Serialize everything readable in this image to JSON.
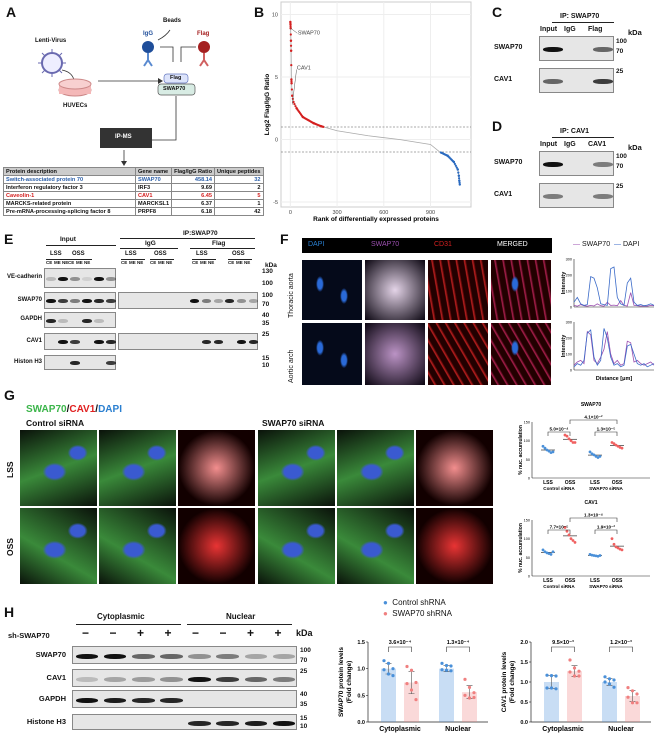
{
  "panels": {
    "A": "A",
    "B": "B",
    "C": "C",
    "D": "D",
    "E": "E",
    "F": "F",
    "G": "G",
    "H": "H"
  },
  "A": {
    "lenti": "Lenti-Virus",
    "huvec": "HUVECs",
    "beads": "Beads",
    "igg": "IgG",
    "flag": "Flag",
    "tag": "Flag",
    "bait": "SWAP70",
    "ipms": "IP-MS",
    "table": {
      "headers": [
        "Protein description",
        "Gene name",
        "Flag/IgG Ratio",
        "Unique peptides"
      ],
      "rows": [
        [
          "Switch-associated protein 70",
          "SWAP70",
          "458.14",
          "32"
        ],
        [
          "Interferon regulatory factor 3",
          "IRF3",
          "9.69",
          "2"
        ],
        [
          "Caveolin-1",
          "CAV1",
          "6.45",
          "5"
        ],
        [
          "MARCKS-related protein",
          "MARCKSL1",
          "6.37",
          "1"
        ],
        [
          "Pre-mRNA-processing-splicing factor 8",
          "PRPF8",
          "6.18",
          "42"
        ]
      ],
      "row_colors": [
        "#2a5ea8",
        "#111",
        "#d42020",
        "#111",
        "#111"
      ]
    }
  },
  "chart_data": [
    {
      "id": "B",
      "type": "scatter",
      "xlabel": "Rank of differentially expressed proteins",
      "ylabel": "Log2 Flag/IgG Ratio",
      "xlim": [
        -60,
        1160
      ],
      "ylim": [
        -5.4,
        11
      ],
      "xticks": [
        "0",
        "300",
        "600",
        "900"
      ],
      "yticks": [
        "10",
        "5",
        "0",
        "-5"
      ],
      "grid": true,
      "thresholds": [
        1,
        -1
      ],
      "annotations": [
        "SWAP70",
        "CAV1"
      ],
      "points": [
        [
          0,
          9.4
        ],
        [
          1,
          9.2
        ],
        [
          2,
          8.9
        ],
        [
          4,
          7.9
        ],
        [
          5,
          7.1
        ],
        [
          7,
          4.8
        ],
        [
          8,
          4.5
        ],
        [
          12,
          3.5
        ],
        [
          20,
          3.0
        ],
        [
          40,
          2.5
        ],
        [
          80,
          1.8
        ],
        [
          150,
          1.3
        ],
        [
          200,
          1.05
        ],
        [
          300,
          0.7
        ],
        [
          500,
          0.3
        ],
        [
          700,
          0.0
        ],
        [
          900,
          -0.4
        ],
        [
          960,
          -1.0
        ],
        [
          1010,
          -1.3
        ],
        [
          1050,
          -1.8
        ],
        [
          1075,
          -2.4
        ],
        [
          1082,
          -2.9
        ],
        [
          1085,
          -3.3
        ],
        [
          1088,
          -3.6
        ]
      ],
      "colors": {
        "up": "#d42020",
        "down": "#2a6ac0",
        "ns": "#aaaaaa"
      }
    },
    {
      "id": "F-thoracic",
      "type": "line",
      "ylabel": "Intensity",
      "ylim": [
        0,
        300
      ],
      "yticks": [
        "0",
        "100",
        "200",
        "300"
      ],
      "series": [
        {
          "name": "SWAP70",
          "color": "#9b4fb0",
          "values": [
            10,
            5,
            15,
            8,
            5,
            10,
            6,
            20,
            8,
            5,
            30,
            10,
            12,
            8,
            40,
            10,
            6,
            90,
            10,
            8,
            5,
            6,
            5,
            10,
            8
          ]
        },
        {
          "name": "DAPI",
          "color": "#3a6ac8",
          "values": [
            30,
            60,
            20,
            10,
            15,
            190,
            180,
            120,
            20,
            15,
            10,
            240,
            250,
            60,
            20,
            10,
            150,
            180,
            30,
            10,
            15,
            8,
            12,
            20,
            10
          ]
        }
      ]
    },
    {
      "id": "F-aortic",
      "type": "line",
      "xlabel": "Distance [μm]",
      "ylabel": "Intensity",
      "ylim": [
        0,
        300
      ],
      "yticks": [
        "0",
        "100",
        "200",
        "300"
      ],
      "series": [
        {
          "name": "SWAP70",
          "color": "#9b4fb0",
          "values": [
            30,
            50,
            60,
            40,
            240,
            220,
            60,
            40,
            80,
            130,
            240,
            100,
            40,
            60,
            30,
            40,
            180,
            170,
            50,
            60,
            40,
            30,
            40,
            50,
            30
          ]
        },
        {
          "name": "DAPI",
          "color": "#3a6ac8",
          "values": [
            20,
            40,
            30,
            60,
            230,
            250,
            80,
            30,
            60,
            260,
            200,
            80,
            30,
            40,
            20,
            30,
            150,
            160,
            100,
            40,
            30,
            40,
            20,
            30,
            40
          ]
        }
      ]
    },
    {
      "id": "G-SWAP70",
      "type": "scatter",
      "title": "SWAP70",
      "ylabel": "% nuc. accumulation",
      "ylim": [
        0,
        150
      ],
      "yticks": [
        "0",
        "50",
        "100",
        "150"
      ],
      "categories": [
        "LSS",
        "OSS",
        "LSS",
        "OSS"
      ],
      "groups": [
        "Control siRNA",
        "SWAP70 siRNA"
      ],
      "values": [
        [
          85,
          80,
          75,
          72,
          68,
          70
        ],
        [
          115,
          112,
          105,
          100,
          95,
          95
        ],
        [
          70,
          65,
          62,
          58,
          55,
          58
        ],
        [
          95,
          92,
          88,
          85,
          82,
          80
        ]
      ],
      "pvalues": [
        "5.0×10⁻⁴",
        "1.3×10⁻⁵",
        "4.1×10⁻²"
      ]
    },
    {
      "id": "G-CAV1",
      "type": "scatter",
      "title": "CAV1",
      "ylabel": "% nuc. accumulation",
      "ylim": [
        0,
        150
      ],
      "yticks": [
        "0",
        "50",
        "100",
        "150"
      ],
      "categories": [
        "LSS",
        "OSS",
        "LSS",
        "OSS"
      ],
      "groups": [
        "Control siRNA",
        "SWAP70 siRNA"
      ],
      "values": [
        [
          70,
          65,
          62,
          60,
          58,
          65
        ],
        [
          130,
          120,
          110,
          100,
          95,
          90
        ],
        [
          58,
          56,
          55,
          54,
          53,
          55
        ],
        [
          100,
          85,
          78,
          75,
          72,
          70
        ]
      ],
      "pvalues": [
        "7.7×10⁻⁵",
        "1.9×10⁻²",
        "1.3×10⁻⁴"
      ]
    },
    {
      "id": "H-SWAP70",
      "type": "bar",
      "ylabel": "SWAP70 protein levels\n(Fold change)",
      "ylim": [
        0,
        1.5
      ],
      "yticks": [
        "0.0",
        "0.5",
        "1.0",
        "1.5"
      ],
      "categories": [
        "Cytoplasmic",
        "Nuclear"
      ],
      "series": [
        {
          "name": "Control shRNA",
          "color": "#4a90d9",
          "values": [
            1.0,
            1.0
          ],
          "points": [
            [
              1.15,
              1.1,
              1.0,
              0.98,
              0.9,
              0.87
            ],
            [
              1.1,
              1.06,
              1.05,
              0.98,
              0.97,
              0.96
            ]
          ]
        },
        {
          "name": "SWAP70 shRNA",
          "color": "#f08080",
          "values": [
            0.74,
            0.56
          ],
          "points": [
            [
              1.04,
              0.97,
              0.74,
              0.72,
              0.6,
              0.42
            ],
            [
              0.8,
              0.65,
              0.55,
              0.5,
              0.45,
              0.46
            ]
          ]
        }
      ],
      "pvalues": [
        "3.6×10⁻⁴",
        "1.3×10⁻⁴"
      ]
    },
    {
      "id": "H-CAV1",
      "type": "bar",
      "ylabel": "CAV1 protein levels\n(Fold change)",
      "ylim": [
        0,
        2.0
      ],
      "yticks": [
        "0.0",
        "0.5",
        "1.0",
        "1.5",
        "2.0"
      ],
      "categories": [
        "Cytoplasmic",
        "Nuclear"
      ],
      "series": [
        {
          "name": "Control shRNA",
          "color": "#4a90d9",
          "values": [
            1.0,
            1.0
          ],
          "points": [
            [
              1.17,
              1.16,
              1.15,
              0.85,
              0.85,
              0.83
            ],
            [
              1.13,
              1.08,
              1.05,
              1.0,
              0.95,
              0.87
            ]
          ]
        },
        {
          "name": "SWAP70 shRNA",
          "color": "#f08080",
          "values": [
            1.27,
            0.65
          ],
          "points": [
            [
              1.55,
              1.35,
              1.27,
              1.25,
              1.15,
              1.15
            ],
            [
              0.86,
              0.78,
              0.7,
              0.62,
              0.48,
              0.48
            ]
          ]
        }
      ],
      "pvalues": [
        "9.5×10⁻³",
        "1.2×10⁻³"
      ]
    }
  ],
  "C": {
    "ip": "IP: SWAP70",
    "lanes": [
      "Input",
      "IgG",
      "Flag"
    ],
    "kda": "kDa",
    "rows": [
      {
        "label": "SWAP70",
        "bands": [
          1,
          0,
          0.6
        ],
        "markers": [
          "100",
          "70"
        ]
      },
      {
        "label": "CAV1",
        "bands": [
          0.6,
          0,
          0.8
        ],
        "markers": [
          "25"
        ]
      }
    ]
  },
  "D": {
    "ip": "IP: CAV1",
    "lanes": [
      "Input",
      "IgG",
      "CAV1"
    ],
    "kda": "kDa",
    "rows": [
      {
        "label": "SWAP70",
        "bands": [
          1,
          0,
          0.5
        ],
        "markers": [
          "100",
          "70"
        ]
      },
      {
        "label": "CAV1",
        "bands": [
          0.5,
          0,
          0.5
        ],
        "markers": [
          "25"
        ]
      }
    ]
  },
  "E": {
    "input": "Input",
    "ip": "IP:SWAP70",
    "igg": "IgG",
    "flag": "Flag",
    "lss": "LSS",
    "oss": "OSS",
    "fractions": [
      "CE",
      "ME",
      "NE"
    ],
    "kda": "kDa",
    "rows": [
      {
        "label": "VE-cadherin",
        "input": [
          0.2,
          1,
          0.4,
          0.1,
          1,
          0.4
        ],
        "ip": null,
        "markers": [
          "130",
          "100"
        ]
      },
      {
        "label": "SWAP70",
        "input": [
          1,
          0.8,
          0.5,
          1,
          0.9,
          0.8
        ],
        "ip": [
          0,
          0,
          0,
          0,
          0,
          0,
          1,
          0.5,
          0.3,
          0.9,
          0.4,
          0.3
        ],
        "markers": [
          "100",
          "70"
        ]
      },
      {
        "label": "GAPDH",
        "input": [
          0.9,
          0.2,
          0,
          0.9,
          0.2,
          0
        ],
        "ip": null,
        "markers": [
          "40",
          "35"
        ]
      },
      {
        "label": "CAV1",
        "input": [
          0,
          1,
          0.8,
          0,
          1,
          0.9
        ],
        "ip": [
          0,
          0,
          0,
          0,
          0,
          0,
          0,
          0.9,
          0.9,
          0,
          1,
          0.9
        ],
        "markers": [
          "25"
        ]
      },
      {
        "label": "Histon H3",
        "input": [
          0,
          0,
          0.9,
          0,
          0,
          0.8
        ],
        "ip": null,
        "markers": [
          "15",
          "10"
        ]
      }
    ]
  },
  "F": {
    "channels": [
      "DAPI",
      "SWAP70",
      "CD31",
      "MERGED"
    ],
    "channel_colors": [
      "#2a7fd0",
      "#9b4fb0",
      "#d42020",
      "#ffffff"
    ],
    "rows": [
      "Thoracic aorta",
      "Aortic arch"
    ],
    "legend": [
      "SWAP70",
      "DAPI"
    ],
    "xlabel": "Distance [μm]",
    "ylabel": "Intensity"
  },
  "G": {
    "stain": [
      "SWAP70",
      "/",
      "CAV1",
      "/",
      "DAPI"
    ],
    "stain_colors": [
      "#3bb54a",
      "#111",
      "#e02020",
      "#111",
      "#2a7fd0"
    ],
    "groups": [
      "Control siRNA",
      "SWAP70 siRNA"
    ],
    "rows": [
      "LSS",
      "OSS"
    ]
  },
  "H": {
    "cyto": "Cytoplasmic",
    "nuc": "Nuclear",
    "sh": "sh-SWAP70",
    "signs": [
      "−",
      "−",
      "+",
      "+",
      "−",
      "−",
      "+",
      "+"
    ],
    "kda": "kDa",
    "rows": [
      {
        "label": "SWAP70",
        "bands": [
          1,
          1,
          0.6,
          0.6,
          0.4,
          0.5,
          0.3,
          0.3
        ],
        "markers": [
          "100",
          "70"
        ]
      },
      {
        "label": "CAV1",
        "bands": [
          0.2,
          0.3,
          0.35,
          0.4,
          1,
          0.8,
          0.6,
          0.5
        ],
        "markers": [
          "25"
        ]
      },
      {
        "label": "GAPDH",
        "bands": [
          1,
          0.95,
          0.9,
          0.9,
          0,
          0,
          0,
          0
        ],
        "markers": [
          "40",
          "35"
        ]
      },
      {
        "label": "Histone H3",
        "bands": [
          0,
          0,
          0,
          0,
          0.9,
          0.9,
          0.95,
          1
        ],
        "markers": [
          "15",
          "10"
        ]
      }
    ],
    "legend": [
      "Control shRNA",
      "SWAP70 shRNA"
    ]
  }
}
